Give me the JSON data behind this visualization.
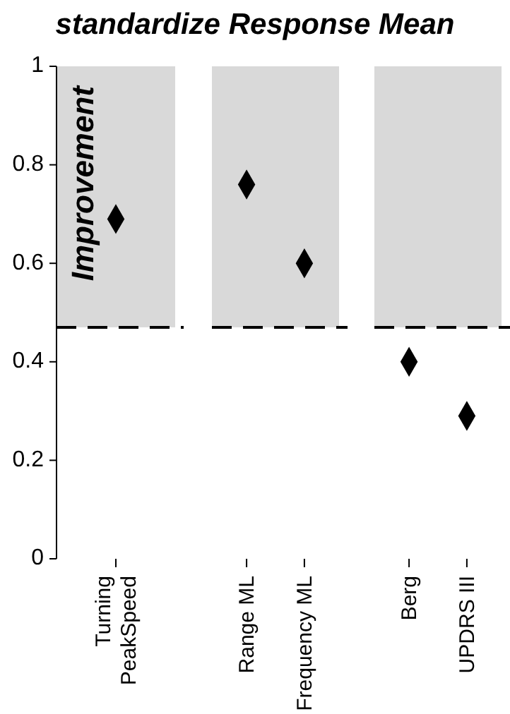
{
  "chart_data": [
    {
      "type": "scatter",
      "title": "standardize Response Mean",
      "categories": [
        "Turning\nPeakSpeed"
      ],
      "values": [
        0.69
      ],
      "color": "#000000",
      "marker": "diamond",
      "ylim": [
        0,
        1
      ],
      "yticks": [
        0,
        0.2,
        0.4,
        0.6,
        0.8,
        1
      ],
      "bands": [
        {
          "axis": "y",
          "from": 0.47,
          "to": 1,
          "label": "Improvement",
          "color": "#d9d9d9"
        }
      ],
      "ref_lines": [
        {
          "axis": "y",
          "value": 0.47,
          "line_style": "dashed",
          "color": "#000000"
        }
      ]
    },
    {
      "type": "scatter",
      "categories": [
        "Range ML",
        "Frequency ML"
      ],
      "values": [
        0.76,
        0.6
      ],
      "color": "#000000",
      "marker": "diamond",
      "ylim": [
        0,
        1
      ],
      "tick_labels": "x",
      "bands": [
        {
          "axis": "y",
          "from": 0.47,
          "to": 1,
          "color": "#d9d9d9"
        }
      ],
      "ref_lines": [
        {
          "axis": "y",
          "value": 0.47,
          "line_style": "dashed",
          "color": "#000000"
        }
      ]
    },
    {
      "type": "scatter",
      "categories": [
        "Berg",
        "UPDRS III"
      ],
      "values": [
        0.4,
        0.29
      ],
      "color": "#000000",
      "marker": "diamond",
      "ylim": [
        0,
        1
      ],
      "tick_labels": "x",
      "bands": [
        {
          "axis": "y",
          "from": 0.47,
          "to": 1,
          "color": "#d9d9d9"
        }
      ],
      "ref_lines": [
        {
          "axis": "y",
          "value": 0.47,
          "line_style": "dashed",
          "color": "#000000"
        }
      ]
    }
  ]
}
